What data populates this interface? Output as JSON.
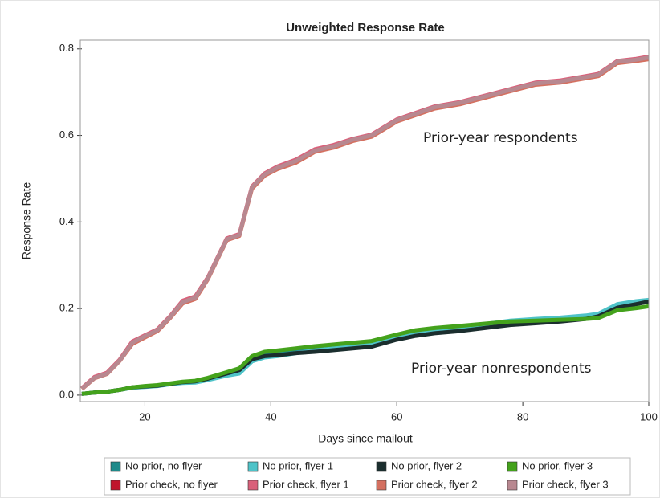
{
  "chart_data": {
    "type": "line",
    "title": "Unweighted Response Rate",
    "x_label": "Days since mailout",
    "y_label": "Response Rate",
    "annotations": [
      "Prior-year respondents",
      "Prior-year nonrespondents"
    ],
    "x": [
      10,
      12,
      14,
      16,
      18,
      20,
      22,
      24,
      26,
      28,
      30,
      33,
      35,
      37,
      39,
      41,
      44,
      47,
      50,
      53,
      56,
      60,
      63,
      66,
      70,
      74,
      78,
      82,
      86,
      90,
      92,
      95,
      98,
      100
    ],
    "series": [
      {
        "name": "No prior, no flyer",
        "color": "#1f8a8a",
        "values": [
          0.003,
          0.006,
          0.008,
          0.012,
          0.018,
          0.02,
          0.022,
          0.026,
          0.03,
          0.032,
          0.038,
          0.05,
          0.058,
          0.085,
          0.093,
          0.096,
          0.101,
          0.106,
          0.11,
          0.114,
          0.118,
          0.133,
          0.143,
          0.149,
          0.155,
          0.161,
          0.169,
          0.174,
          0.177,
          0.182,
          0.186,
          0.205,
          0.212,
          0.218
        ]
      },
      {
        "name": "No prior, flyer 1",
        "color": "#4fc3c8",
        "values": [
          0.003,
          0.006,
          0.008,
          0.012,
          0.017,
          0.019,
          0.021,
          0.025,
          0.028,
          0.029,
          0.035,
          0.045,
          0.05,
          0.078,
          0.087,
          0.09,
          0.097,
          0.103,
          0.108,
          0.113,
          0.118,
          0.134,
          0.145,
          0.152,
          0.158,
          0.164,
          0.172,
          0.176,
          0.179,
          0.184,
          0.188,
          0.21,
          0.217,
          0.22
        ]
      },
      {
        "name": "No prior, flyer 2",
        "color": "#1b2e2e",
        "values": [
          0.003,
          0.006,
          0.008,
          0.012,
          0.018,
          0.02,
          0.022,
          0.026,
          0.03,
          0.032,
          0.038,
          0.05,
          0.058,
          0.083,
          0.09,
          0.092,
          0.097,
          0.1,
          0.104,
          0.108,
          0.112,
          0.128,
          0.137,
          0.143,
          0.148,
          0.155,
          0.162,
          0.166,
          0.17,
          0.176,
          0.182,
          0.202,
          0.21,
          0.216
        ]
      },
      {
        "name": "No prior, flyer 3",
        "color": "#44a21c",
        "values": [
          0.003,
          0.006,
          0.008,
          0.012,
          0.018,
          0.021,
          0.023,
          0.027,
          0.031,
          0.033,
          0.04,
          0.053,
          0.062,
          0.09,
          0.1,
          0.103,
          0.108,
          0.113,
          0.117,
          0.121,
          0.125,
          0.14,
          0.15,
          0.155,
          0.16,
          0.165,
          0.17,
          0.172,
          0.174,
          0.176,
          0.178,
          0.196,
          0.201,
          0.205
        ]
      },
      {
        "name": "Prior check, no flyer",
        "color": "#c0142c",
        "values": [
          0.015,
          0.04,
          0.05,
          0.08,
          0.12,
          0.135,
          0.15,
          0.18,
          0.215,
          0.225,
          0.27,
          0.36,
          0.37,
          0.48,
          0.51,
          0.525,
          0.54,
          0.565,
          0.575,
          0.59,
          0.6,
          0.635,
          0.65,
          0.665,
          0.675,
          0.69,
          0.705,
          0.72,
          0.725,
          0.735,
          0.74,
          0.77,
          0.775,
          0.78
        ]
      },
      {
        "name": "Prior check, flyer 1",
        "color": "#d9607a",
        "values": [
          0.016,
          0.042,
          0.052,
          0.082,
          0.124,
          0.138,
          0.152,
          0.182,
          0.218,
          0.228,
          0.272,
          0.362,
          0.372,
          0.482,
          0.512,
          0.528,
          0.544,
          0.568,
          0.578,
          0.592,
          0.602,
          0.637,
          0.652,
          0.667,
          0.677,
          0.692,
          0.707,
          0.722,
          0.727,
          0.737,
          0.742,
          0.772,
          0.777,
          0.782
        ]
      },
      {
        "name": "Prior check, flyer 2",
        "color": "#d47060",
        "values": [
          0.014,
          0.039,
          0.049,
          0.079,
          0.118,
          0.133,
          0.148,
          0.178,
          0.212,
          0.222,
          0.268,
          0.358,
          0.368,
          0.477,
          0.507,
          0.522,
          0.537,
          0.562,
          0.572,
          0.587,
          0.597,
          0.632,
          0.647,
          0.662,
          0.672,
          0.687,
          0.702,
          0.717,
          0.722,
          0.732,
          0.737,
          0.767,
          0.772,
          0.776
        ]
      },
      {
        "name": "Prior check, flyer 3",
        "color": "#b88890",
        "values": [
          0.015,
          0.04,
          0.05,
          0.08,
          0.121,
          0.136,
          0.15,
          0.18,
          0.215,
          0.225,
          0.27,
          0.36,
          0.37,
          0.48,
          0.51,
          0.525,
          0.541,
          0.565,
          0.575,
          0.59,
          0.6,
          0.635,
          0.65,
          0.665,
          0.675,
          0.69,
          0.705,
          0.72,
          0.725,
          0.735,
          0.74,
          0.77,
          0.775,
          0.78
        ]
      }
    ],
    "xlim": [
      10,
      100
    ],
    "xticks": [
      20,
      40,
      60,
      80,
      100
    ],
    "ylim": [
      -0.015,
      0.82
    ],
    "yticks": [
      {
        "value": 0,
        "label": "0.0"
      },
      0.2,
      0.4,
      0.6,
      0.8
    ],
    "grid": false,
    "legend": "bottom"
  }
}
